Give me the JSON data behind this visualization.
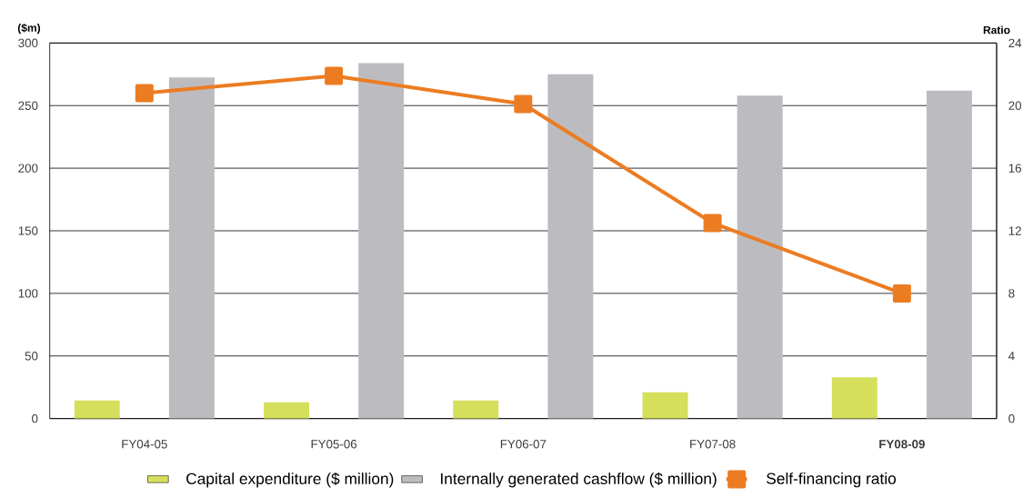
{
  "chart_data": {
    "type": "bar",
    "ylabel": "($m)",
    "y2label": "Ratio",
    "categories": [
      "FY04-05",
      "FY05-06",
      "FY06-07",
      "FY07-08",
      "**FY08-09**"
    ],
    "series": [
      {
        "name": "Capital expenditure ($ million)",
        "color": "#d6df5c",
        "values": [
          14.5,
          13,
          14.5,
          21,
          33
        ]
      },
      {
        "name": "Internally generated cashflow ($ million)",
        "color": "#bcbcc0",
        "values": [
          272.5,
          284,
          275,
          258,
          262
        ]
      },
      {
        "name": "Self-financing ratio",
        "type": "line",
        "axis": "y2",
        "color": "#ec7c22",
        "marker": "square",
        "line_style": "solid",
        "values": [
          20.8,
          21.9,
          20.1,
          12.5,
          8.0
        ]
      }
    ],
    "ylim": [
      0,
      300
    ],
    "yticks": [
      0,
      50,
      100,
      150,
      200,
      250,
      300
    ],
    "y2lim": [
      0,
      24
    ],
    "y2ticks": [
      0,
      4,
      8,
      12,
      16,
      20,
      24
    ],
    "grid": "y",
    "legend": "bottom"
  }
}
